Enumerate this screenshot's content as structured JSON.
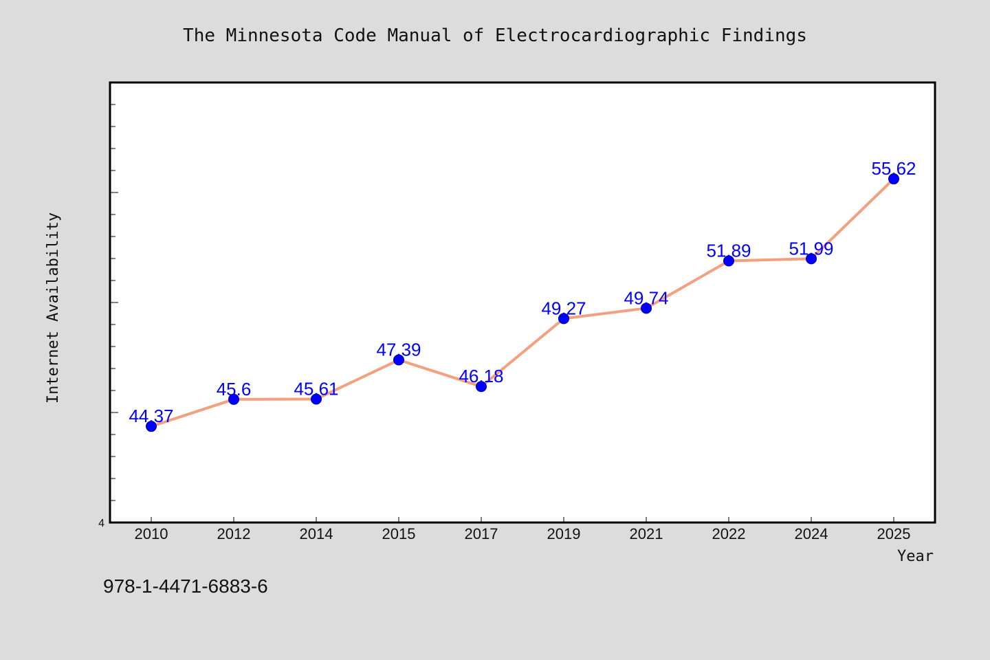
{
  "chart_data": {
    "type": "line",
    "title": "The Minnesota Code Manual of Electrocardiographic Findings",
    "xlabel": "Year",
    "ylabel": "Internet Availability",
    "categories": [
      "2010",
      "2012",
      "2014",
      "2015",
      "2017",
      "2019",
      "2021",
      "2022",
      "2024",
      "2025"
    ],
    "series": [
      {
        "values": [
          44.37,
          45.6,
          45.61,
          47.39,
          46.18,
          49.27,
          49.74,
          51.89,
          51.99,
          55.62
        ],
        "labels": [
          "44.37",
          "45.6",
          "45.61",
          "47.39",
          "46.18",
          "49.27",
          "49.74",
          "51.89",
          "51.99",
          "55.62"
        ]
      }
    ],
    "y_tick_label": "4",
    "ylim": [
      40,
      60
    ],
    "grid": false,
    "legend": "none",
    "colors": {
      "line": "#f4a07e",
      "marker": "#0000ff",
      "labels": "#0000ff",
      "plot_bg": "#ffffff",
      "page_bg": "#dcdcdc"
    }
  },
  "footnote": "978-1-4471-6883-6"
}
